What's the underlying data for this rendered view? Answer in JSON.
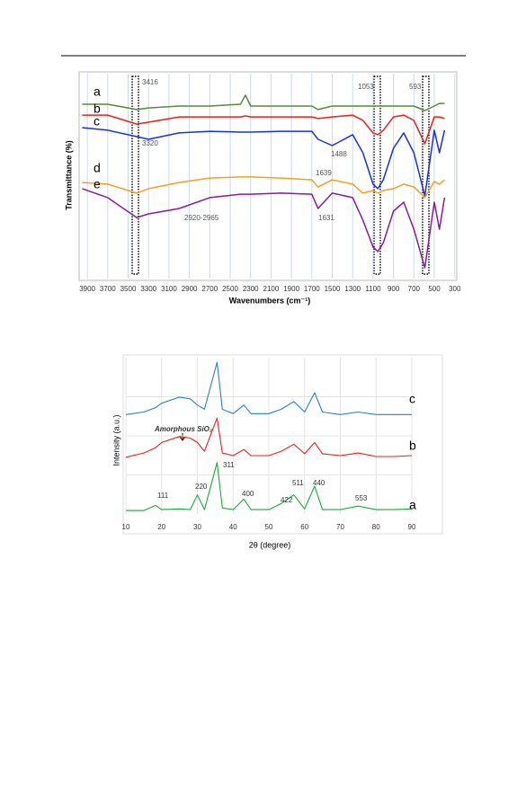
{
  "chart_data": [
    {
      "type": "line",
      "xlabel": "Wavenumbers (cm⁻¹)",
      "ylabel": "Transmittance (%)",
      "x": [
        3950,
        3700,
        3416,
        3300,
        3000,
        2700,
        2400,
        2350,
        2300,
        2000,
        1700,
        1639,
        1500,
        1300,
        1200,
        1100,
        1053,
        1000,
        900,
        800,
        700,
        593,
        500,
        450,
        400
      ],
      "xlim": [
        3945,
        280
      ],
      "xticks": [
        3900,
        3700,
        3500,
        3300,
        3100,
        2900,
        2700,
        2500,
        2300,
        2100,
        1900,
        1700,
        1500,
        1300,
        1100,
        900,
        700,
        500,
        300
      ],
      "ylim": [
        0,
        100
      ],
      "grid": true,
      "series": [
        {
          "name": "a",
          "color": "#5a8a3a",
          "values": [
            85.1,
            85.1,
            82.5,
            83.3,
            84.2,
            84.2,
            85.1,
            89.5,
            84.2,
            84.2,
            84.2,
            82.5,
            84.2,
            84.2,
            84.2,
            84.2,
            84.2,
            84.2,
            84.2,
            84.2,
            84.2,
            82.0,
            84.2,
            85.5,
            85.5
          ]
        },
        {
          "name": "b",
          "color": "#e8201e",
          "values": [
            79.8,
            79.8,
            75.4,
            76.3,
            78.9,
            78.9,
            78.9,
            79.4,
            78.9,
            78.9,
            78.9,
            78.1,
            78.9,
            79.8,
            77.2,
            71.1,
            70.2,
            72.4,
            78.9,
            79.8,
            77.2,
            65.8,
            78.9,
            78.9,
            78.1
          ]
        },
        {
          "name": "c",
          "color": "#1a2fe0",
          "values": [
            73.7,
            72.4,
            69.3,
            68.0,
            71.1,
            71.9,
            71.5,
            71.5,
            71.5,
            71.9,
            71.9,
            68.0,
            64.9,
            70.2,
            61.4,
            46.1,
            43.9,
            48.2,
            63.6,
            71.1,
            61.4,
            40.4,
            72.4,
            61.4,
            72.4
          ]
        },
        {
          "name": "d",
          "color": "#f5a020",
          "values": [
            46.9,
            46.1,
            41.7,
            43.9,
            46.9,
            49.1,
            49.6,
            49.6,
            49.6,
            49.1,
            48.2,
            44.7,
            48.2,
            46.1,
            41.7,
            43.0,
            41.7,
            43.0,
            43.9,
            46.1,
            44.7,
            39.5,
            47.4,
            46.1,
            48.2
          ]
        },
        {
          "name": "e",
          "color": "#8a1a9a",
          "values": [
            43.9,
            39.5,
            29.8,
            31.6,
            34.2,
            39.5,
            41.2,
            41.2,
            41.2,
            41.7,
            41.2,
            34.2,
            41.7,
            39.5,
            28.5,
            15.4,
            13.2,
            17.5,
            32.9,
            37.3,
            24.1,
            5.3,
            37.3,
            24.1,
            39.5
          ]
        }
      ],
      "annotations": [
        "3416",
        "3320",
        "1053",
        "593",
        "1488",
        "1639",
        "2920-2965",
        "1631"
      ]
    },
    {
      "type": "line",
      "xlabel": "2θ (degree)",
      "ylabel": "Intensity (a.u.)",
      "x": [
        10,
        15,
        18.3,
        20,
        25,
        28,
        30,
        32,
        35.5,
        37,
        40,
        43,
        45,
        50,
        53.5,
        57,
        60,
        62.8,
        65,
        70,
        75,
        80,
        85,
        90
      ],
      "xlim": [
        10,
        90
      ],
      "xticks": [
        10,
        20,
        30,
        40,
        50,
        60,
        70,
        80,
        90
      ],
      "ylim": [
        0,
        103
      ],
      "grid": true,
      "series": [
        {
          "name": "a",
          "color": "#1aaa3a",
          "values": [
            2.3,
            2.3,
            5.7,
            2.9,
            3.4,
            2.9,
            12.6,
            2.9,
            33.9,
            4.0,
            2.9,
            9.8,
            2.9,
            2.9,
            6.9,
            12.6,
            3.4,
            18.4,
            2.9,
            2.9,
            5.2,
            2.9,
            2.9,
            3.4
          ]
        },
        {
          "name": "b",
          "color": "#e82020",
          "values": [
            37.4,
            40.2,
            43.7,
            47.1,
            51.1,
            50.0,
            47.1,
            41.4,
            63.2,
            40.2,
            38.5,
            42.5,
            38.5,
            38.5,
            41.4,
            46.0,
            39.7,
            47.1,
            39.7,
            38.5,
            40.2,
            37.9,
            37.9,
            38.5
          ]
        },
        {
          "name": "c",
          "color": "#2a7fc8",
          "values": [
            65.5,
            67.2,
            70.1,
            73.0,
            77.0,
            75.9,
            71.8,
            69.0,
            100,
            69.0,
            66.1,
            71.8,
            66.1,
            66.1,
            69.0,
            74.1,
            67.2,
            79.9,
            67.2,
            65.5,
            67.2,
            65.5,
            65.5,
            65.5
          ]
        }
      ],
      "annotations": [
        "Amorphous SiO₂",
        "111",
        "220",
        "311",
        "400",
        "422",
        "511",
        "440",
        "553"
      ]
    }
  ]
}
